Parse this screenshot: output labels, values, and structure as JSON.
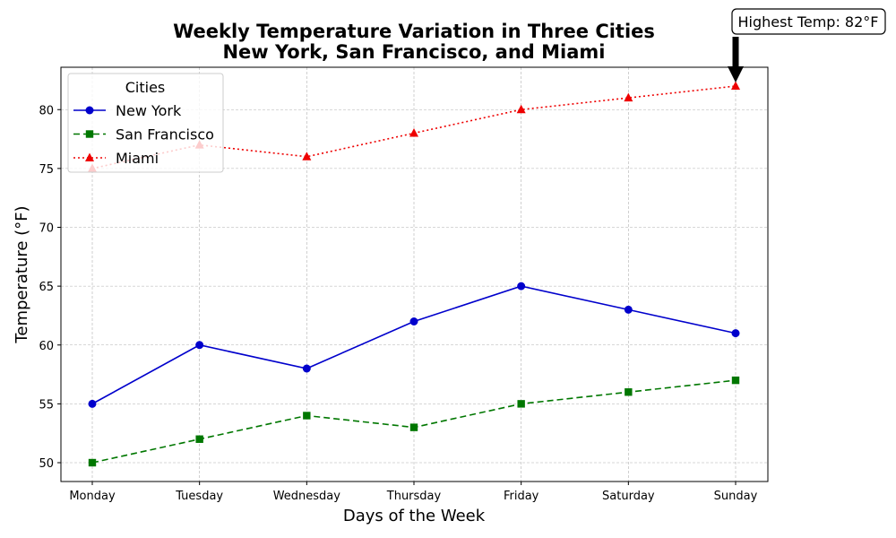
{
  "chart_data": {
    "type": "line",
    "title_line1": "Weekly Temperature Variation in Three Cities",
    "title_line2": "New York, San Francisco, and Miami",
    "xlabel": "Days of the Week",
    "ylabel": "Temperature (°F)",
    "categories": [
      "Monday",
      "Tuesday",
      "Wednesday",
      "Thursday",
      "Friday",
      "Saturday",
      "Sunday"
    ],
    "ylim": [
      48.4,
      83.6
    ],
    "yticks": [
      50,
      55,
      60,
      65,
      70,
      75,
      80
    ],
    "grid": true,
    "legend": {
      "title": "Cities",
      "placement": "top-left"
    },
    "series": [
      {
        "name": "New York",
        "values": [
          55,
          60,
          58,
          62,
          65,
          63,
          61
        ],
        "color": "#0000cc",
        "marker": "circle",
        "linestyle": "solid"
      },
      {
        "name": "San Francisco",
        "values": [
          50,
          52,
          54,
          53,
          55,
          56,
          57
        ],
        "color": "#007700",
        "marker": "square",
        "linestyle": "dashed"
      },
      {
        "name": "Miami",
        "values": [
          75,
          77,
          76,
          78,
          80,
          81,
          82
        ],
        "color": "#ee0000",
        "marker": "triangle",
        "linestyle": "dotted"
      }
    ],
    "annotation": {
      "text": "Highest Temp: 82°F",
      "target_category": "Sunday",
      "target_value": 82
    }
  }
}
